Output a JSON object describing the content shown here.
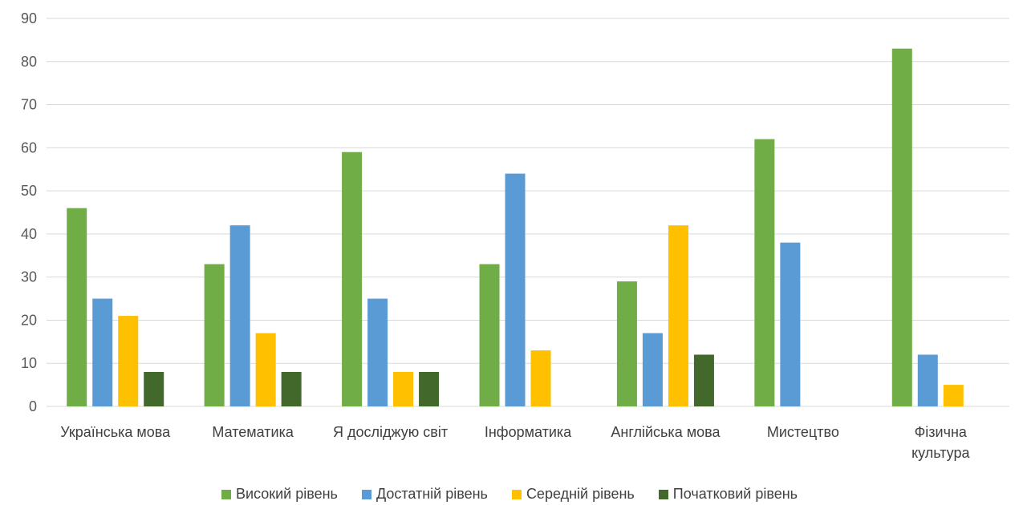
{
  "chart_data": {
    "type": "bar",
    "categories": [
      "Українська мова",
      "Математика",
      "Я досліджую світ",
      "Інформатика",
      "Англійська мова",
      "Мистецтво",
      "Фізична культура"
    ],
    "category_lines": [
      [
        "Українська мова"
      ],
      [
        "Математика"
      ],
      [
        "Я досліджую світ"
      ],
      [
        "Інформатика"
      ],
      [
        "Англійська мова"
      ],
      [
        "Мистецтво"
      ],
      [
        "Фізична",
        "культура"
      ]
    ],
    "series": [
      {
        "name": "Високий рівень",
        "color": "#70AD47",
        "values": [
          46,
          33,
          59,
          33,
          29,
          62,
          83
        ]
      },
      {
        "name": "Достатній рівень",
        "color": "#5B9BD5",
        "values": [
          25,
          42,
          25,
          54,
          17,
          38,
          12
        ]
      },
      {
        "name": "Середній рівень",
        "color": "#FFC000",
        "values": [
          21,
          17,
          8,
          13,
          42,
          0,
          5
        ]
      },
      {
        "name": "Початковий рівень",
        "color": "#43682B",
        "values": [
          8,
          8,
          8,
          0,
          12,
          0,
          0
        ]
      }
    ],
    "yticks": [
      "0",
      "10",
      "20",
      "30",
      "40",
      "50",
      "60",
      "70",
      "80",
      "90"
    ],
    "ylim": [
      0,
      90
    ],
    "grid": true,
    "legend": "bottom",
    "title": "",
    "xlabel": "",
    "ylabel": ""
  }
}
